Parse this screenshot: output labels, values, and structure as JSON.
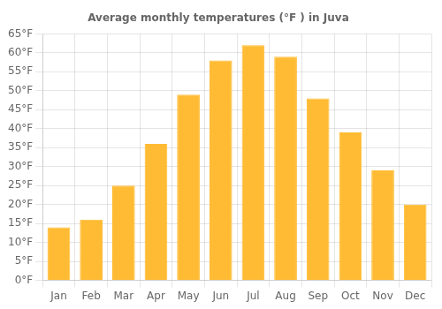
{
  "chart_data": {
    "type": "bar",
    "title": "Average monthly temperatures (°F ) in Juva",
    "categories": [
      "Jan",
      "Feb",
      "Mar",
      "Apr",
      "May",
      "Jun",
      "Jul",
      "Aug",
      "Sep",
      "Oct",
      "Nov",
      "Dec"
    ],
    "values": [
      14,
      16,
      25,
      36,
      49,
      58,
      62,
      59,
      48,
      39,
      29,
      20
    ],
    "color": "#FFBB33",
    "ylim": [
      0,
      65
    ],
    "yticks": [
      {
        "value": 0,
        "label": "0°F"
      },
      {
        "value": 5,
        "label": "5°F"
      },
      {
        "value": 10,
        "label": "10°F"
      },
      {
        "value": 15,
        "label": "15°F"
      },
      {
        "value": 20,
        "label": "20°F"
      },
      {
        "value": 25,
        "label": "25°F"
      },
      {
        "value": 30,
        "label": "30°F"
      },
      {
        "value": 35,
        "label": "35°F"
      },
      {
        "value": 40,
        "label": "40°F"
      },
      {
        "value": 45,
        "label": "45°F"
      },
      {
        "value": 50,
        "label": "50°F"
      },
      {
        "value": 55,
        "label": "55°F"
      },
      {
        "value": 60,
        "label": "60°F"
      },
      {
        "value": 65,
        "label": "65°F"
      }
    ],
    "grid": true
  }
}
